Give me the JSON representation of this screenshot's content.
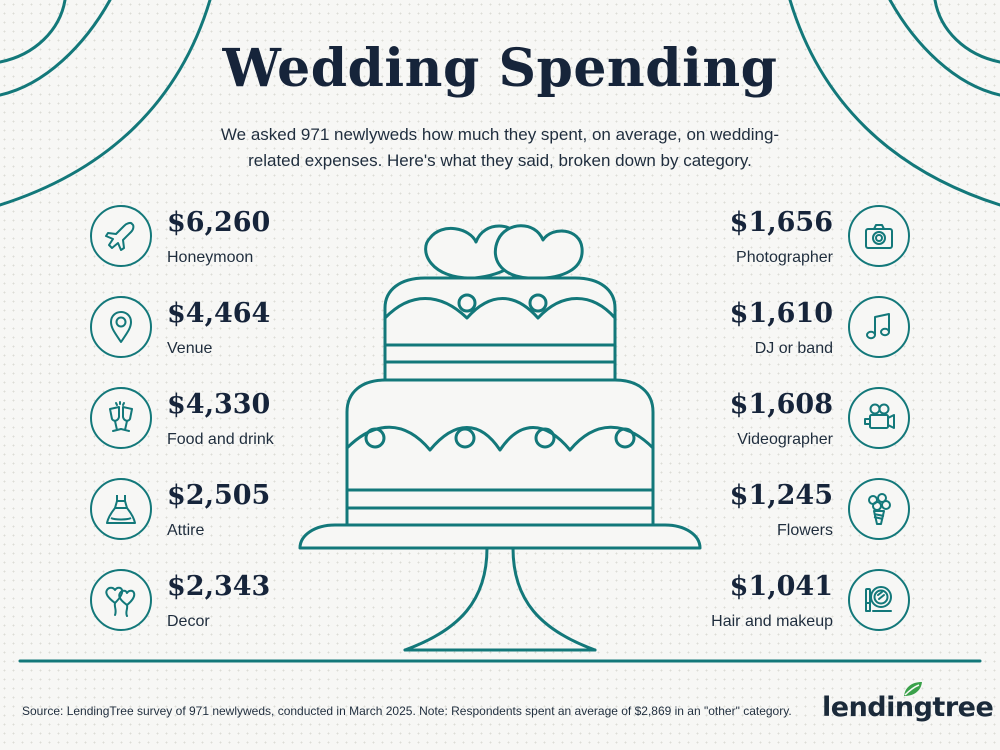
{
  "title": "Wedding Spending",
  "subtitle": "We asked 971 newlyweds how much they spent, on average, on wedding-related expenses. Here's what they said, broken down by category.",
  "colors": {
    "accent": "#13787a",
    "text": "#16243a",
    "background": "#f7f7f5"
  },
  "left_items": [
    {
      "amount": "$6,260",
      "label": "Honeymoon",
      "icon": "airplane-icon"
    },
    {
      "amount": "$4,464",
      "label": "Venue",
      "icon": "map-pin-icon"
    },
    {
      "amount": "$4,330",
      "label": "Food and drink",
      "icon": "champagne-toast-icon"
    },
    {
      "amount": "$2,505",
      "label": "Attire",
      "icon": "wedding-dress-icon"
    },
    {
      "amount": "$2,343",
      "label": "Decor",
      "icon": "heart-balloons-icon"
    }
  ],
  "right_items": [
    {
      "amount": "$1,656",
      "label": "Photographer",
      "icon": "camera-icon"
    },
    {
      "amount": "$1,610",
      "label": "DJ or band",
      "icon": "music-note-icon"
    },
    {
      "amount": "$1,608",
      "label": "Videographer",
      "icon": "video-camera-icon"
    },
    {
      "amount": "$1,245",
      "label": "Flowers",
      "icon": "bouquet-icon"
    },
    {
      "amount": "$1,041",
      "label": "Hair and makeup",
      "icon": "makeup-mirror-icon"
    }
  ],
  "footer": "Source: LendingTree survey of 971 newlyweds, conducted in March 2025. Note: Respondents spent an average of $2,869 in an \"other\" category.",
  "brand": "lendingtree"
}
